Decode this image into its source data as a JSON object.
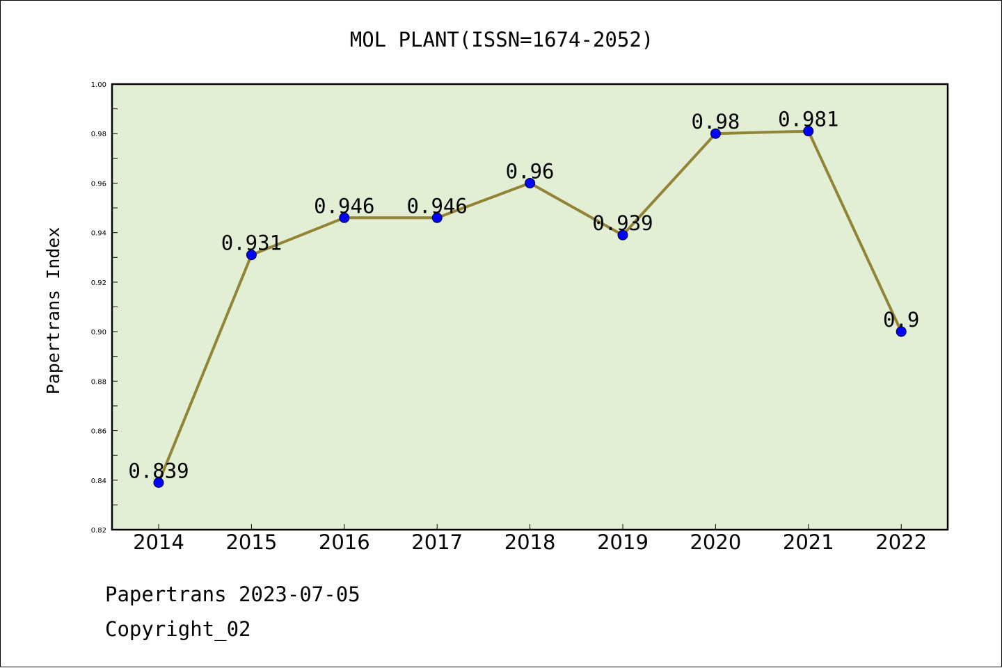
{
  "chart_data": {
    "type": "line",
    "title": "MOL PLANT(ISSN=1674-2052)",
    "xlabel": "",
    "ylabel": "Papertrans Index",
    "categories": [
      "2014",
      "2015",
      "2016",
      "2017",
      "2018",
      "2019",
      "2020",
      "2021",
      "2022"
    ],
    "series": [
      {
        "values": [
          0.839,
          0.931,
          0.946,
          0.946,
          0.96,
          0.939,
          0.98,
          0.981,
          0.9
        ],
        "labels": [
          "0.839",
          "0.931",
          "0.946",
          "0.946",
          "0.96",
          "0.939",
          "0.98",
          "0.981",
          "0.9"
        ]
      }
    ],
    "ylim": [
      0.82,
      1.0
    ],
    "yticks": [
      "0.82",
      "0.84",
      "0.86",
      "0.88",
      "0.90",
      "0.92",
      "0.94",
      "0.96",
      "0.98",
      "1.00"
    ],
    "grid": false,
    "legend": "none",
    "colors": {
      "plot_background": "#e2efd4",
      "line": "#938336",
      "marker": "#0000ff"
    }
  },
  "footer": {
    "line1": "Papertrans 2023-07-05",
    "line2": "Copyright_02"
  }
}
